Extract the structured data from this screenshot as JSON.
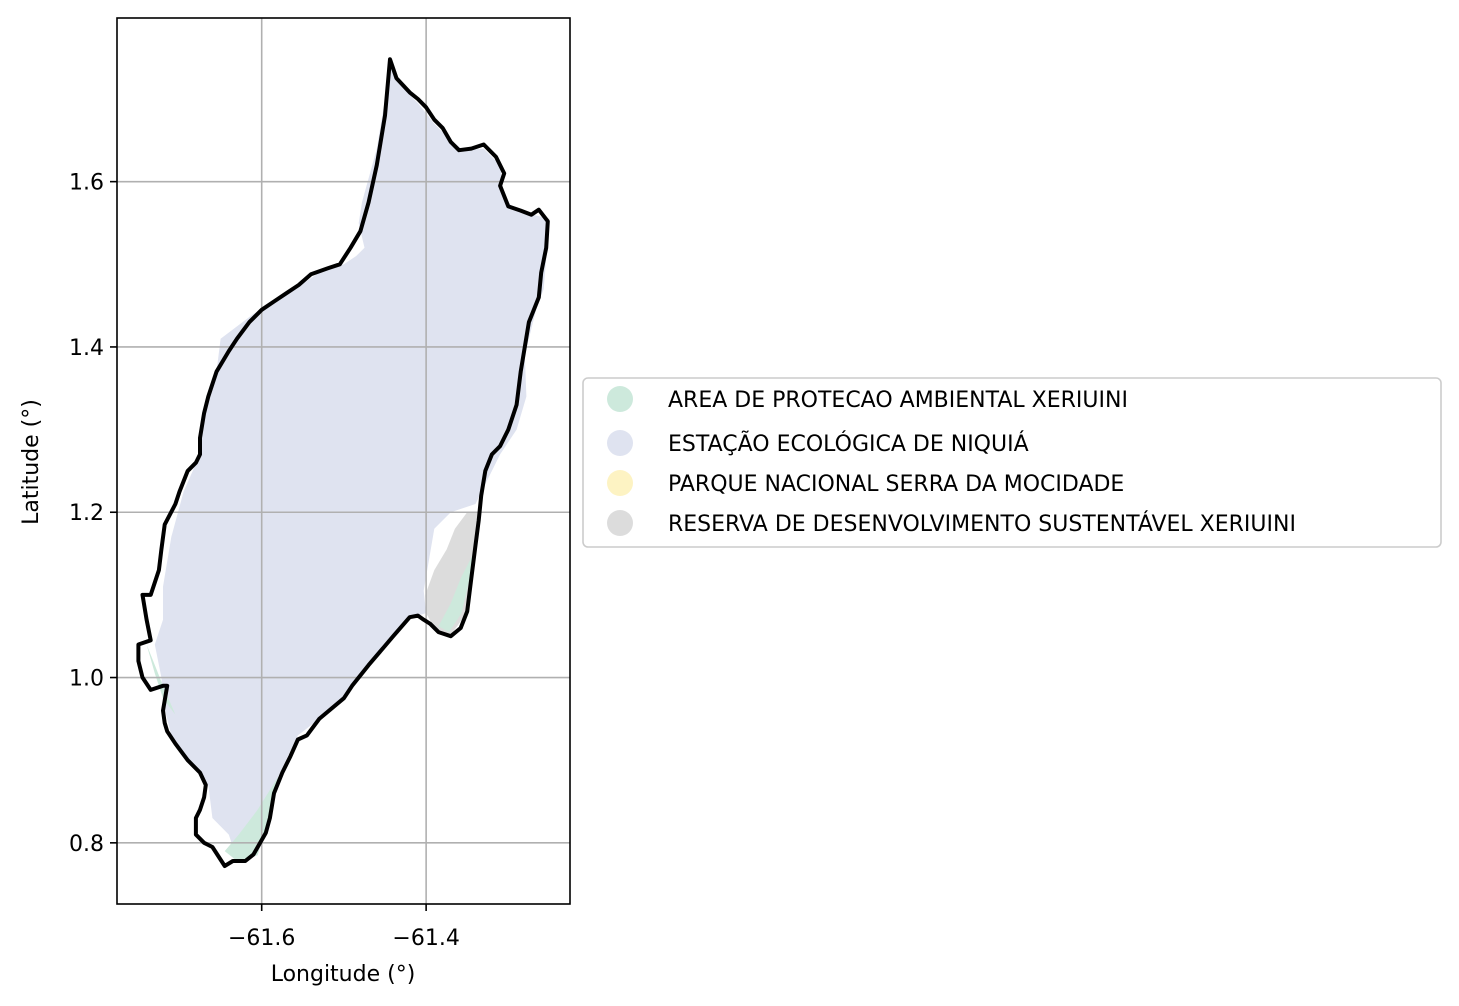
{
  "chart_data": {
    "type": "map",
    "xlabel": "Longitude (°)",
    "ylabel": "Latitude (°)",
    "xlim": [
      -61.776,
      -61.225
    ],
    "ylim": [
      0.726,
      1.798
    ],
    "grid": true,
    "legend_position": "right-center",
    "x_ticks": [
      {
        "value": -61.6,
        "label": "−61.6"
      },
      {
        "value": -61.4,
        "label": "−61.4"
      }
    ],
    "y_ticks": [
      {
        "value": 0.8,
        "label": "0.8"
      },
      {
        "value": 1.0,
        "label": "1.0"
      },
      {
        "value": 1.2,
        "label": "1.2"
      },
      {
        "value": 1.4,
        "label": "1.4"
      },
      {
        "value": 1.6,
        "label": "1.6"
      }
    ],
    "boundary_color": "#000000",
    "legend": [
      {
        "label": "AREA DE PROTECAO AMBIENTAL XERIUINI",
        "color": "#cde9dc"
      },
      {
        "label": "ESTAÇÃO ECOLÓGICA DE NIQUIÁ",
        "color": "#dfe3f0"
      },
      {
        "label": "PARQUE NACIONAL SERRA DA MOCIDADE",
        "color": "#fdf3c3"
      },
      {
        "label": "RESERVA DE DESENVOLVIMENTO SUSTENTÁVEL XERIUINI",
        "color": "#dcdcdc"
      }
    ],
    "regions": [
      {
        "category": "ESTAÇÃO ECOLÓGICA DE NIQUIÁ",
        "polygon": [
          [
            -61.444,
            1.745
          ],
          [
            -61.436,
            1.725
          ],
          [
            -61.425,
            1.71
          ],
          [
            -61.41,
            1.695
          ],
          [
            -61.39,
            1.67
          ],
          [
            -61.375,
            1.655
          ],
          [
            -61.355,
            1.638
          ],
          [
            -61.33,
            1.64
          ],
          [
            -61.31,
            1.62
          ],
          [
            -61.305,
            1.58
          ],
          [
            -61.29,
            1.565
          ],
          [
            -61.27,
            1.56
          ],
          [
            -61.25,
            1.555
          ],
          [
            -61.257,
            1.47
          ],
          [
            -61.265,
            1.45
          ],
          [
            -61.28,
            1.39
          ],
          [
            -61.278,
            1.34
          ],
          [
            -61.29,
            1.3
          ],
          [
            -61.31,
            1.27
          ],
          [
            -61.33,
            1.23
          ],
          [
            -61.34,
            1.21
          ],
          [
            -61.37,
            1.2
          ],
          [
            -61.39,
            1.18
          ],
          [
            -61.403,
            1.105
          ],
          [
            -61.4,
            1.078
          ],
          [
            -61.42,
            1.072
          ],
          [
            -61.445,
            1.045
          ],
          [
            -61.478,
            1.005
          ],
          [
            -61.5,
            0.975
          ],
          [
            -61.53,
            0.95
          ],
          [
            -61.556,
            0.93
          ],
          [
            -61.58,
            0.88
          ],
          [
            -61.59,
            0.835
          ],
          [
            -61.615,
            0.787
          ],
          [
            -61.63,
            0.78
          ],
          [
            -61.64,
            0.81
          ],
          [
            -61.66,
            0.83
          ],
          [
            -61.665,
            0.87
          ],
          [
            -61.69,
            0.9
          ],
          [
            -61.71,
            0.93
          ],
          [
            -61.72,
            0.97
          ],
          [
            -61.722,
            1.0
          ],
          [
            -61.73,
            1.04
          ],
          [
            -61.72,
            1.07
          ],
          [
            -61.72,
            1.11
          ],
          [
            -61.71,
            1.17
          ],
          [
            -61.695,
            1.225
          ],
          [
            -61.675,
            1.27
          ],
          [
            -61.67,
            1.32
          ],
          [
            -61.655,
            1.37
          ],
          [
            -61.65,
            1.41
          ],
          [
            -61.61,
            1.44
          ],
          [
            -61.585,
            1.455
          ],
          [
            -61.56,
            1.47
          ],
          [
            -61.53,
            1.49
          ],
          [
            -61.5,
            1.5
          ],
          [
            -61.485,
            1.51
          ],
          [
            -61.475,
            1.52
          ],
          [
            -61.482,
            1.55
          ],
          [
            -61.478,
            1.575
          ],
          [
            -61.46,
            1.64
          ],
          [
            -61.45,
            1.7
          ]
        ]
      },
      {
        "category": "RESERVA DE DESENVOLVIMENTO SUSTENTÁVEL XERIUINI",
        "polygon": [
          [
            -61.337,
            1.2
          ],
          [
            -61.343,
            1.15
          ],
          [
            -61.346,
            1.1
          ],
          [
            -61.35,
            1.08
          ],
          [
            -61.36,
            1.065
          ],
          [
            -61.37,
            1.052
          ],
          [
            -61.39,
            1.06
          ],
          [
            -61.4,
            1.078
          ],
          [
            -61.401,
            1.1
          ],
          [
            -61.39,
            1.13
          ],
          [
            -61.375,
            1.155
          ],
          [
            -61.365,
            1.18
          ],
          [
            -61.35,
            1.2
          ]
        ]
      },
      {
        "category": "AREA DE PROTECAO AMBIENTAL XERIUINI",
        "polygon": [
          [
            -61.34,
            1.155
          ],
          [
            -61.347,
            1.12
          ],
          [
            -61.357,
            1.078
          ],
          [
            -61.372,
            1.055
          ],
          [
            -61.385,
            1.062
          ],
          [
            -61.37,
            1.09
          ],
          [
            -61.358,
            1.12
          ]
        ]
      },
      {
        "category": "AREA DE PROTECAO AMBIENTAL XERIUINI",
        "polygon": [
          [
            -61.58,
            0.88
          ],
          [
            -61.59,
            0.835
          ],
          [
            -61.605,
            0.785
          ],
          [
            -61.63,
            0.778
          ],
          [
            -61.645,
            0.79
          ],
          [
            -61.628,
            0.81
          ],
          [
            -61.605,
            0.84
          ]
        ]
      },
      {
        "category": "AREA DE PROTECAO AMBIENTAL XERIUINI",
        "polygon": [
          [
            -61.74,
            1.04
          ],
          [
            -61.73,
            1.005
          ],
          [
            -61.72,
            0.975
          ],
          [
            -61.705,
            0.955
          ],
          [
            -61.72,
            0.99
          ],
          [
            -61.732,
            1.02
          ]
        ]
      }
    ],
    "boundary": [
      [
        -61.444,
        1.748
      ],
      [
        -61.436,
        1.725
      ],
      [
        -61.42,
        1.708
      ],
      [
        -61.41,
        1.7
      ],
      [
        -61.4,
        1.69
      ],
      [
        -61.39,
        1.675
      ],
      [
        -61.38,
        1.665
      ],
      [
        -61.37,
        1.648
      ],
      [
        -61.36,
        1.638
      ],
      [
        -61.345,
        1.64
      ],
      [
        -61.33,
        1.645
      ],
      [
        -61.315,
        1.63
      ],
      [
        -61.305,
        1.61
      ],
      [
        -61.31,
        1.595
      ],
      [
        -61.3,
        1.57
      ],
      [
        -61.285,
        1.565
      ],
      [
        -61.272,
        1.56
      ],
      [
        -61.263,
        1.566
      ],
      [
        -61.252,
        1.552
      ],
      [
        -61.254,
        1.52
      ],
      [
        -61.26,
        1.49
      ],
      [
        -61.263,
        1.46
      ],
      [
        -61.275,
        1.43
      ],
      [
        -61.28,
        1.4
      ],
      [
        -61.285,
        1.37
      ],
      [
        -61.29,
        1.33
      ],
      [
        -61.3,
        1.3
      ],
      [
        -61.31,
        1.28
      ],
      [
        -61.32,
        1.27
      ],
      [
        -61.328,
        1.25
      ],
      [
        -61.333,
        1.22
      ],
      [
        -61.336,
        1.19
      ],
      [
        -61.34,
        1.16
      ],
      [
        -61.345,
        1.12
      ],
      [
        -61.35,
        1.08
      ],
      [
        -61.358,
        1.06
      ],
      [
        -61.37,
        1.05
      ],
      [
        -61.385,
        1.055
      ],
      [
        -61.395,
        1.065
      ],
      [
        -61.403,
        1.07
      ],
      [
        -61.41,
        1.075
      ],
      [
        -61.42,
        1.073
      ],
      [
        -61.44,
        1.05
      ],
      [
        -61.47,
        1.015
      ],
      [
        -61.49,
        0.99
      ],
      [
        -61.5,
        0.975
      ],
      [
        -61.53,
        0.95
      ],
      [
        -61.545,
        0.93
      ],
      [
        -61.556,
        0.925
      ],
      [
        -61.565,
        0.905
      ],
      [
        -61.575,
        0.885
      ],
      [
        -61.585,
        0.86
      ],
      [
        -61.59,
        0.83
      ],
      [
        -61.595,
        0.812
      ],
      [
        -61.61,
        0.786
      ],
      [
        -61.62,
        0.778
      ],
      [
        -61.635,
        0.778
      ],
      [
        -61.645,
        0.772
      ],
      [
        -61.66,
        0.795
      ],
      [
        -61.67,
        0.8
      ],
      [
        -61.68,
        0.81
      ],
      [
        -61.68,
        0.83
      ],
      [
        -61.675,
        0.84
      ],
      [
        -61.67,
        0.855
      ],
      [
        -61.668,
        0.87
      ],
      [
        -61.675,
        0.885
      ],
      [
        -61.69,
        0.9
      ],
      [
        -61.705,
        0.92
      ],
      [
        -61.715,
        0.935
      ],
      [
        -61.718,
        0.945
      ],
      [
        -61.72,
        0.96
      ],
      [
        -61.715,
        0.99
      ],
      [
        -61.72,
        0.99
      ],
      [
        -61.735,
        0.985
      ],
      [
        -61.745,
        1.0
      ],
      [
        -61.75,
        1.02
      ],
      [
        -61.75,
        1.04
      ],
      [
        -61.735,
        1.045
      ],
      [
        -61.74,
        1.07
      ],
      [
        -61.745,
        1.1
      ],
      [
        -61.735,
        1.1
      ],
      [
        -61.725,
        1.13
      ],
      [
        -61.722,
        1.155
      ],
      [
        -61.718,
        1.185
      ],
      [
        -61.705,
        1.21
      ],
      [
        -61.7,
        1.225
      ],
      [
        -61.69,
        1.25
      ],
      [
        -61.68,
        1.26
      ],
      [
        -61.675,
        1.27
      ],
      [
        -61.675,
        1.29
      ],
      [
        -61.67,
        1.32
      ],
      [
        -61.665,
        1.34
      ],
      [
        -61.655,
        1.37
      ],
      [
        -61.64,
        1.395
      ],
      [
        -61.63,
        1.41
      ],
      [
        -61.615,
        1.43
      ],
      [
        -61.6,
        1.445
      ],
      [
        -61.585,
        1.455
      ],
      [
        -61.57,
        1.465
      ],
      [
        -61.555,
        1.475
      ],
      [
        -61.54,
        1.488
      ],
      [
        -61.52,
        1.495
      ],
      [
        -61.505,
        1.5
      ],
      [
        -61.492,
        1.52
      ],
      [
        -61.48,
        1.54
      ],
      [
        -61.47,
        1.575
      ],
      [
        -61.46,
        1.62
      ],
      [
        -61.45,
        1.68
      ],
      [
        -61.444,
        1.748
      ]
    ]
  }
}
